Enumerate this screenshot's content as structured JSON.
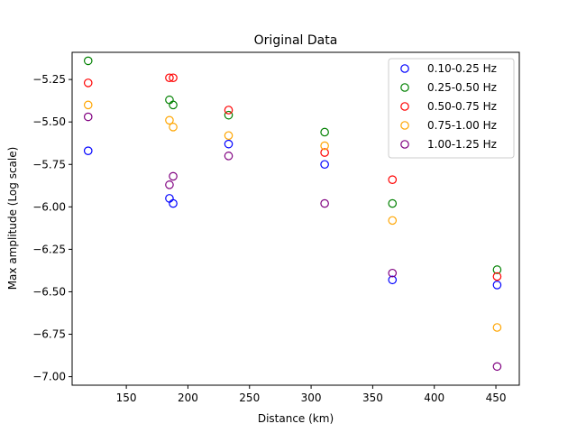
{
  "chart_data": {
    "type": "scatter",
    "title": "Original Data",
    "xlabel": "Distance (km)",
    "ylabel": "Max amplitude (Log scale)",
    "xlim": [
      106,
      469
    ],
    "ylim": [
      -7.05,
      -5.09
    ],
    "xticks": [
      150,
      200,
      250,
      300,
      350,
      400,
      450
    ],
    "yticks": [
      -7.0,
      -6.75,
      -6.5,
      -6.25,
      -6.0,
      -5.75,
      -5.5,
      -5.25
    ],
    "xtick_labels": [
      "150",
      "200",
      "250",
      "300",
      "350",
      "400",
      "450"
    ],
    "ytick_labels": [
      "−7.00",
      "−6.75",
      "−6.50",
      "−6.25",
      "−6.00",
      "−5.75",
      "−5.50",
      "−5.25"
    ],
    "grid": false,
    "legend_position": "top-right",
    "marker": "open-circle",
    "series": [
      {
        "name": "0.10-0.25 Hz",
        "color": "#0000ff",
        "points": [
          [
            119,
            -5.67
          ],
          [
            185,
            -5.95
          ],
          [
            188,
            -5.98
          ],
          [
            233,
            -5.63
          ],
          [
            311,
            -5.75
          ],
          [
            366,
            -6.43
          ],
          [
            451,
            -6.46
          ]
        ]
      },
      {
        "name": "0.25-0.50 Hz",
        "color": "#008000",
        "points": [
          [
            119,
            -5.14
          ],
          [
            185,
            -5.37
          ],
          [
            188,
            -5.4
          ],
          [
            233,
            -5.46
          ],
          [
            311,
            -5.56
          ],
          [
            366,
            -5.98
          ],
          [
            451,
            -6.37
          ]
        ]
      },
      {
        "name": "0.50-0.75 Hz",
        "color": "#ff0000",
        "points": [
          [
            119,
            -5.27
          ],
          [
            185,
            -5.24
          ],
          [
            188,
            -5.24
          ],
          [
            233,
            -5.43
          ],
          [
            311,
            -5.68
          ],
          [
            366,
            -5.84
          ],
          [
            451,
            -6.41
          ]
        ]
      },
      {
        "name": "0.75-1.00 Hz",
        "color": "#ffa500",
        "points": [
          [
            119,
            -5.4
          ],
          [
            185,
            -5.49
          ],
          [
            188,
            -5.53
          ],
          [
            233,
            -5.58
          ],
          [
            311,
            -5.64
          ],
          [
            366,
            -6.08
          ],
          [
            451,
            -6.71
          ]
        ]
      },
      {
        "name": "1.00-1.25 Hz",
        "color": "#800080",
        "points": [
          [
            119,
            -5.47
          ],
          [
            185,
            -5.87
          ],
          [
            188,
            -5.82
          ],
          [
            233,
            -5.7
          ],
          [
            311,
            -5.98
          ],
          [
            366,
            -6.39
          ],
          [
            451,
            -6.94
          ]
        ]
      }
    ]
  }
}
